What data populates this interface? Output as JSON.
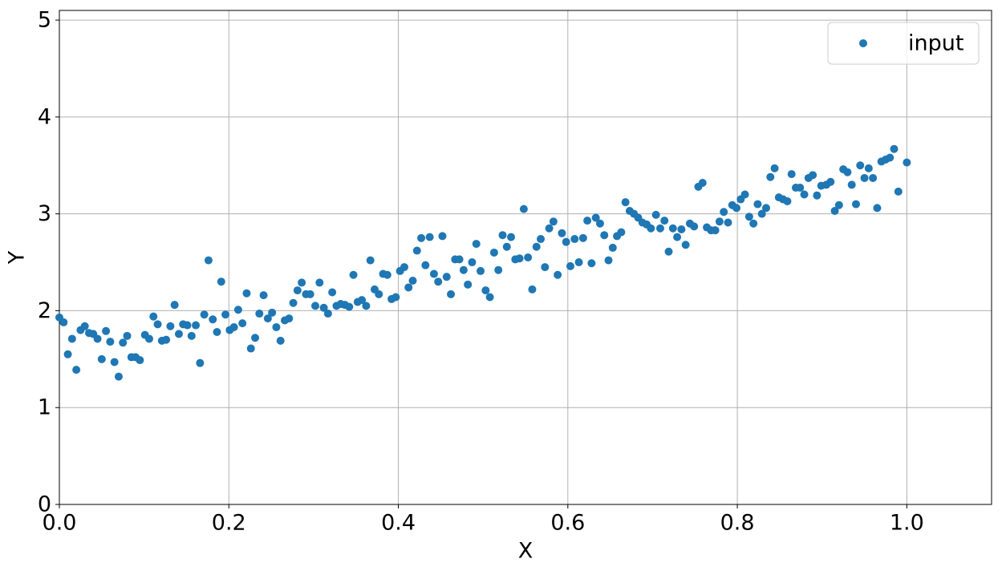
{
  "chart_data": {
    "type": "scatter",
    "xlabel": "X",
    "ylabel": "Y",
    "xlim": [
      0,
      1.1
    ],
    "ylim": [
      0,
      5.1
    ],
    "xticks": [
      {
        "value": 0,
        "label": "0.0"
      },
      0.2,
      0.4,
      0.6,
      0.8,
      {
        "value": 1,
        "label": "1.0"
      }
    ],
    "yticks": [
      0,
      1,
      2,
      3,
      4,
      5
    ],
    "grid": true,
    "legend": "upper right",
    "series": [
      {
        "name": "input",
        "color": "#1f77b4",
        "x": [
          0,
          0.005,
          0.01,
          0.015,
          0.02,
          0.025,
          0.03,
          0.035,
          0.04,
          0.045,
          0.05,
          0.055,
          0.06,
          0.065,
          0.07,
          0.075,
          0.08,
          0.085,
          0.09,
          0.095,
          0.101,
          0.106,
          0.111,
          0.116,
          0.121,
          0.126,
          0.131,
          0.136,
          0.141,
          0.146,
          0.151,
          0.156,
          0.161,
          0.166,
          0.171,
          0.176,
          0.181,
          0.186,
          0.191,
          0.196,
          0.201,
          0.206,
          0.211,
          0.216,
          0.221,
          0.226,
          0.231,
          0.236,
          0.241,
          0.246,
          0.251,
          0.256,
          0.261,
          0.266,
          0.271,
          0.276,
          0.281,
          0.286,
          0.291,
          0.296,
          0.302,
          0.307,
          0.312,
          0.317,
          0.322,
          0.327,
          0.332,
          0.337,
          0.342,
          0.347,
          0.352,
          0.357,
          0.362,
          0.367,
          0.372,
          0.377,
          0.382,
          0.387,
          0.392,
          0.397,
          0.402,
          0.407,
          0.412,
          0.417,
          0.422,
          0.427,
          0.432,
          0.437,
          0.442,
          0.447,
          0.452,
          0.457,
          0.462,
          0.467,
          0.472,
          0.477,
          0.482,
          0.487,
          0.492,
          0.497,
          0.503,
          0.508,
          0.513,
          0.518,
          0.523,
          0.528,
          0.533,
          0.538,
          0.543,
          0.548,
          0.553,
          0.558,
          0.563,
          0.568,
          0.573,
          0.578,
          0.583,
          0.588,
          0.593,
          0.598,
          0.603,
          0.608,
          0.613,
          0.618,
          0.623,
          0.628,
          0.633,
          0.638,
          0.643,
          0.648,
          0.653,
          0.658,
          0.663,
          0.668,
          0.673,
          0.678,
          0.683,
          0.688,
          0.693,
          0.698,
          0.704,
          0.709,
          0.714,
          0.719,
          0.724,
          0.729,
          0.734,
          0.739,
          0.744,
          0.749,
          0.754,
          0.759,
          0.764,
          0.769,
          0.774,
          0.779,
          0.784,
          0.789,
          0.794,
          0.799,
          0.804,
          0.809,
          0.814,
          0.819,
          0.824,
          0.829,
          0.834,
          0.839,
          0.844,
          0.849,
          0.854,
          0.859,
          0.864,
          0.869,
          0.874,
          0.879,
          0.884,
          0.889,
          0.894,
          0.899,
          0.905,
          0.91,
          0.915,
          0.92,
          0.925,
          0.93,
          0.935,
          0.94,
          0.945,
          0.95,
          0.955,
          0.96,
          0.965,
          0.97,
          0.975,
          0.98,
          0.985,
          0.99,
          1.0
        ],
        "values": [
          1.93,
          1.88,
          1.55,
          1.71,
          1.39,
          1.8,
          1.84,
          1.77,
          1.76,
          1.71,
          1.5,
          1.79,
          1.68,
          1.47,
          1.32,
          1.67,
          1.74,
          1.52,
          1.52,
          1.49,
          1.75,
          1.71,
          1.94,
          1.86,
          1.69,
          1.7,
          1.84,
          2.06,
          1.76,
          1.86,
          1.85,
          1.74,
          1.85,
          1.46,
          1.96,
          2.52,
          1.91,
          1.78,
          2.3,
          1.96,
          1.8,
          1.83,
          2.01,
          1.87,
          2.18,
          1.61,
          1.72,
          1.97,
          2.16,
          1.92,
          1.98,
          1.83,
          1.69,
          1.9,
          1.92,
          2.08,
          2.21,
          2.29,
          2.17,
          2.17,
          2.05,
          2.29,
          2.03,
          1.97,
          2.19,
          2.05,
          2.07,
          2.06,
          2.04,
          2.37,
          2.09,
          2.11,
          2.05,
          2.52,
          2.22,
          2.17,
          2.38,
          2.37,
          2.12,
          2.14,
          2.41,
          2.45,
          2.24,
          2.31,
          2.62,
          2.75,
          2.47,
          2.76,
          2.38,
          2.3,
          2.77,
          2.35,
          2.17,
          2.53,
          2.53,
          2.42,
          2.27,
          2.5,
          2.69,
          2.41,
          2.21,
          2.14,
          2.6,
          2.42,
          2.78,
          2.66,
          2.76,
          2.53,
          2.54,
          3.05,
          2.55,
          2.22,
          2.66,
          2.74,
          2.45,
          2.85,
          2.92,
          2.37,
          2.8,
          2.71,
          2.46,
          2.74,
          2.5,
          2.75,
          2.93,
          2.49,
          2.96,
          2.9,
          2.78,
          2.52,
          2.65,
          2.77,
          2.81,
          3.12,
          3.03,
          3.0,
          2.96,
          2.91,
          2.89,
          2.85,
          2.99,
          2.85,
          2.93,
          2.61,
          2.85,
          2.76,
          2.84,
          2.68,
          2.9,
          2.87,
          3.28,
          3.32,
          2.86,
          2.83,
          2.83,
          2.92,
          3.02,
          2.91,
          3.09,
          3.06,
          3.15,
          3.2,
          2.97,
          2.9,
          3.1,
          3.0,
          3.06,
          3.38,
          3.47,
          3.17,
          3.15,
          3.13,
          3.41,
          3.27,
          3.27,
          3.2,
          3.37,
          3.4,
          3.19,
          3.29,
          3.3,
          3.33,
          3.03,
          3.09,
          3.46,
          3.43,
          3.3,
          3.1,
          3.5,
          3.37,
          3.47,
          3.37,
          3.06,
          3.54,
          3.56,
          3.58,
          3.67,
          3.23,
          3.53
        ]
      }
    ]
  }
}
